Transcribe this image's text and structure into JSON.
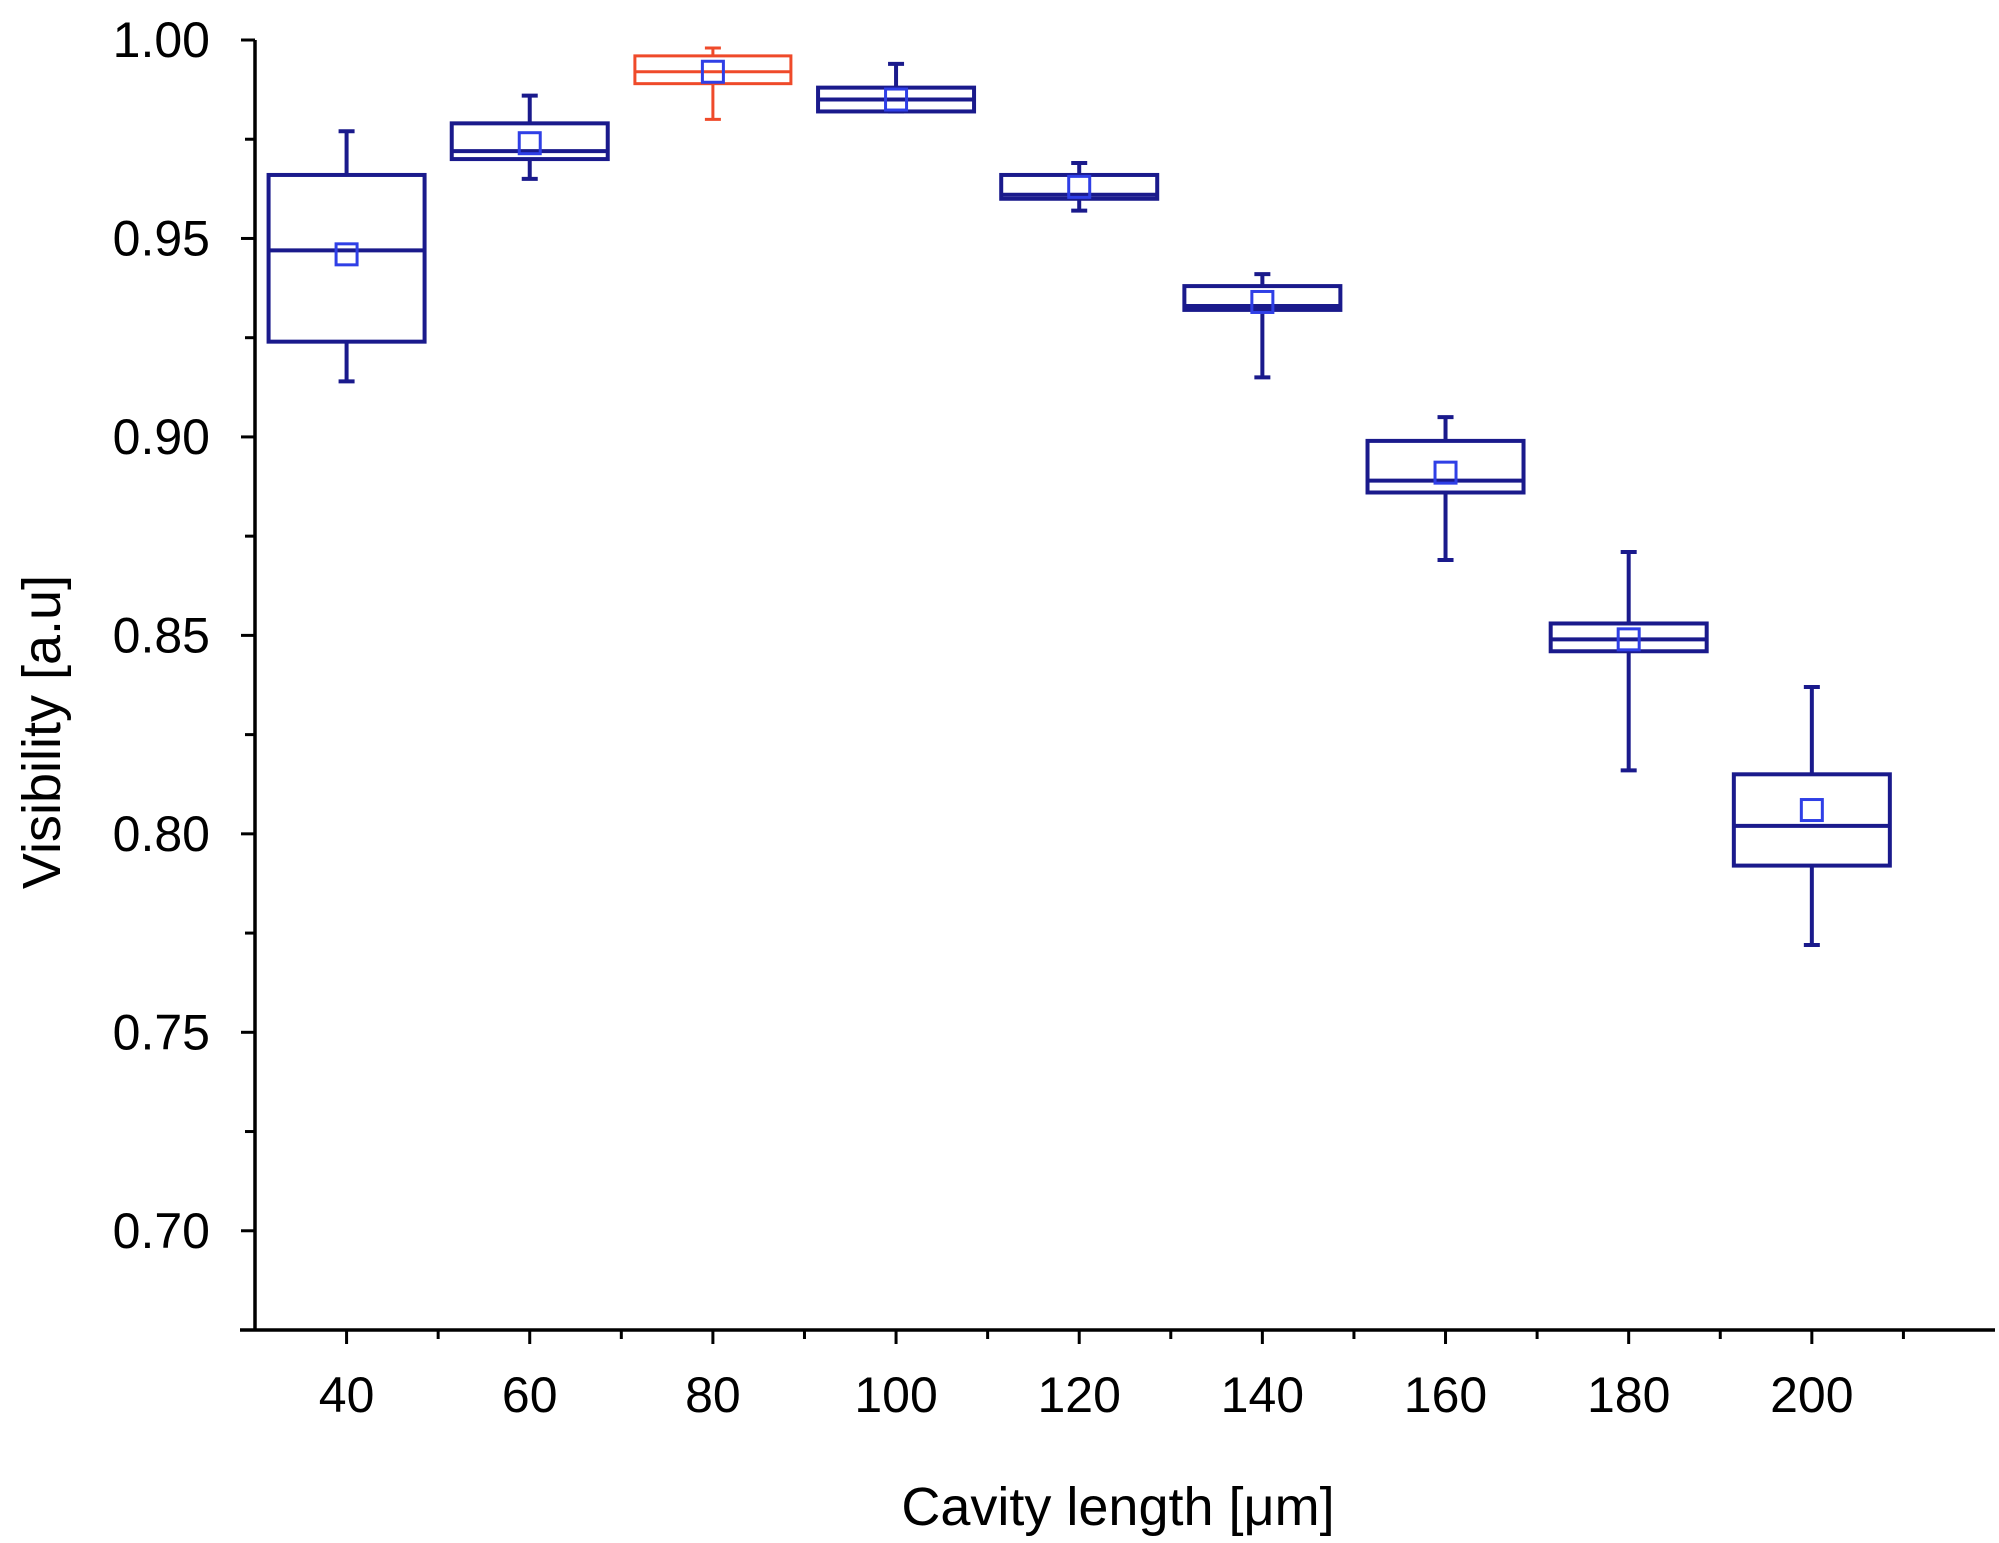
{
  "chart_data": {
    "type": "box",
    "title": "",
    "xlabel": "Cavity length [μm]",
    "ylabel": "Visibility [a.u]",
    "xlim": [
      30,
      220
    ],
    "ylim": [
      0.675,
      1.0
    ],
    "x_ticks": [
      "40",
      "60",
      "80",
      "100",
      "120",
      "140",
      "160",
      "180",
      "200"
    ],
    "y_ticks": [
      "0.70",
      "0.75",
      "0.80",
      "0.85",
      "0.90",
      "0.95",
      "1.00"
    ],
    "colors": {
      "default": "#1a1a8c",
      "highlight": "#ef4a2a",
      "mean_marker": "#2f3fe6",
      "axis": "#000000"
    },
    "boxes": [
      {
        "x": 40,
        "whisker_low": 0.914,
        "q1": 0.924,
        "median": 0.947,
        "q3": 0.966,
        "whisker_high": 0.977,
        "mean": 0.946,
        "highlight": false
      },
      {
        "x": 60,
        "whisker_low": 0.965,
        "q1": 0.97,
        "median": 0.972,
        "q3": 0.979,
        "whisker_high": 0.986,
        "mean": 0.974,
        "highlight": false
      },
      {
        "x": 80,
        "whisker_low": 0.98,
        "q1": 0.989,
        "median": 0.992,
        "q3": 0.996,
        "whisker_high": 0.998,
        "mean": 0.992,
        "highlight": true
      },
      {
        "x": 100,
        "whisker_low": 0.982,
        "q1": 0.982,
        "median": 0.985,
        "q3": 0.988,
        "whisker_high": 0.994,
        "mean": 0.985,
        "highlight": false
      },
      {
        "x": 120,
        "whisker_low": 0.957,
        "q1": 0.96,
        "median": 0.961,
        "q3": 0.966,
        "whisker_high": 0.969,
        "mean": 0.963,
        "highlight": false
      },
      {
        "x": 140,
        "whisker_low": 0.915,
        "q1": 0.932,
        "median": 0.933,
        "q3": 0.938,
        "whisker_high": 0.941,
        "mean": 0.934,
        "highlight": false
      },
      {
        "x": 160,
        "whisker_low": 0.869,
        "q1": 0.886,
        "median": 0.889,
        "q3": 0.899,
        "whisker_high": 0.905,
        "mean": 0.891,
        "highlight": false
      },
      {
        "x": 180,
        "whisker_low": 0.816,
        "q1": 0.846,
        "median": 0.849,
        "q3": 0.853,
        "whisker_high": 0.871,
        "mean": 0.849,
        "highlight": false
      },
      {
        "x": 200,
        "whisker_low": 0.772,
        "q1": 0.792,
        "median": 0.802,
        "q3": 0.815,
        "whisker_high": 0.837,
        "mean": 0.806,
        "highlight": false
      }
    ]
  }
}
